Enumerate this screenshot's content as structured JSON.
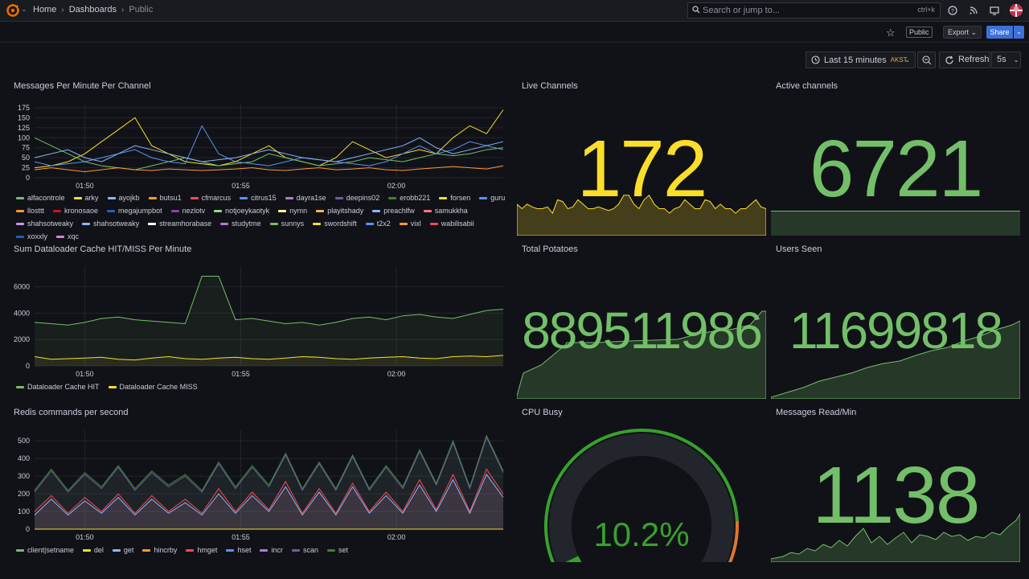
{
  "nav": {
    "breadcrumbs": [
      "Home",
      "Dashboards",
      "Public"
    ],
    "search_placeholder": "Search or jump to...",
    "search_shortcut": "ctrl+k"
  },
  "toolbar": {
    "public_tag": "Public",
    "export_label": "Export",
    "share_label": "Share",
    "time_range": "Last 15 minutes",
    "timezone": "AKST",
    "refresh_label": "Refresh",
    "refresh_interval": "5s"
  },
  "colors": {
    "green": "#73bf69",
    "yellow": "#fade2a",
    "red": "#f2495c",
    "orange": "#ff9830",
    "blue": "#5794f2",
    "purple": "#b877d9"
  },
  "panels": {
    "messages_per_minute": {
      "title": "Messages Per Minute Per Channel",
      "legend": [
        {
          "name": "alfacontrole",
          "color": "#73bf69"
        },
        {
          "name": "arky",
          "color": "#fade2a"
        },
        {
          "name": "ayojkb",
          "color": "#8ab8ff"
        },
        {
          "name": "butsu1",
          "color": "#ff9830"
        },
        {
          "name": "cfmarcus",
          "color": "#f2495c"
        },
        {
          "name": "citrus15",
          "color": "#5794f2"
        },
        {
          "name": "dayra1se",
          "color": "#b877d9"
        },
        {
          "name": "deepins02",
          "color": "#705da0"
        },
        {
          "name": "erobb221",
          "color": "#37872d"
        },
        {
          "name": "forsen",
          "color": "#fade2a"
        },
        {
          "name": "guru",
          "color": "#5794f2"
        },
        {
          "name": "llosttt",
          "color": "#ff9830"
        },
        {
          "name": "kronosaoe",
          "color": "#c4162a"
        },
        {
          "name": "megajumpbot",
          "color": "#1f60c4"
        },
        {
          "name": "nezlotv",
          "color": "#8f3bb8"
        },
        {
          "name": "notjoeykaotyk",
          "color": "#96d98d"
        },
        {
          "name": "nymn",
          "color": "#fff899"
        },
        {
          "name": "playitshady",
          "color": "#ffb357"
        },
        {
          "name": "preachlfw",
          "color": "#8ab8ff"
        },
        {
          "name": "samukkha",
          "color": "#ff7383"
        },
        {
          "name": "shahsotweaky",
          "color": "#ca95e5"
        },
        {
          "name": "shahsotweaky",
          "color": "#8ab8ff"
        },
        {
          "name": "streamhorabase",
          "color": "#ffffff"
        },
        {
          "name": "studytme",
          "color": "#b877d9"
        },
        {
          "name": "sunnys",
          "color": "#73bf69"
        },
        {
          "name": "swordshift",
          "color": "#fade2a"
        },
        {
          "name": "t2x2",
          "color": "#5794f2"
        },
        {
          "name": "vixl",
          "color": "#ff9830"
        },
        {
          "name": "wabilisabii",
          "color": "#f2495c"
        },
        {
          "name": "xoxxly",
          "color": "#1f60c4"
        },
        {
          "name": "xqc",
          "color": "#d683ce"
        }
      ]
    },
    "live_channels": {
      "title": "Live Channels",
      "value": "172",
      "color": "#fade2a",
      "spark": [
        0.35,
        0.3,
        0.35,
        0.32,
        0.3,
        0.3,
        0.32,
        0.25,
        0.4,
        0.38,
        0.3,
        0.32,
        0.4,
        0.35,
        0.3,
        0.3,
        0.32,
        0.3,
        0.28,
        0.3,
        0.35,
        0.45,
        0.45,
        0.35,
        0.3,
        0.4,
        0.45,
        0.35,
        0.3,
        0.3,
        0.25,
        0.3,
        0.32,
        0.4,
        0.35,
        0.3,
        0.3,
        0.4,
        0.38,
        0.3,
        0.35,
        0.3,
        0.3,
        0.25,
        0.3,
        0.3,
        0.35,
        0.4,
        0.32,
        0.3
      ]
    },
    "active_channels": {
      "title": "Active channels",
      "value": "6721",
      "color": "#73bf69"
    },
    "total_potatoes": {
      "title": "Total Potatoes",
      "value": "889511986",
      "color": "#73bf69"
    },
    "users_seen": {
      "title": "Users Seen",
      "value": "11699818",
      "color": "#73bf69"
    },
    "cpu_busy": {
      "title": "CPU Busy",
      "value": "10.2%",
      "percent": 10.2,
      "color": "#37a22c"
    },
    "messages_read": {
      "title": "Messages Read/Min",
      "value": "1138",
      "color": "#73bf69"
    },
    "dataloader": {
      "title": "Sum Dataloader Cache HIT/MISS Per Minute",
      "legend": [
        {
          "name": "Dataloader Cache HIT",
          "color": "#73bf69"
        },
        {
          "name": "Dataloader Cache MISS",
          "color": "#fade2a"
        }
      ]
    },
    "redis": {
      "title": "Redis commands per second",
      "legend": [
        {
          "name": "client|setname",
          "color": "#73bf69"
        },
        {
          "name": "del",
          "color": "#fade2a"
        },
        {
          "name": "get",
          "color": "#8ab8ff"
        },
        {
          "name": "hincrby",
          "color": "#ff9830"
        },
        {
          "name": "hmget",
          "color": "#f2495c"
        },
        {
          "name": "hset",
          "color": "#5794f2"
        },
        {
          "name": "incr",
          "color": "#b877d9"
        },
        {
          "name": "scan",
          "color": "#705da0"
        },
        {
          "name": "set",
          "color": "#37872d"
        }
      ]
    }
  },
  "chart_data": [
    {
      "type": "line",
      "title": "Messages Per Minute Per Channel",
      "x_ticks": [
        "01:50",
        "01:55",
        "02:00"
      ],
      "y_ticks": [
        0,
        25,
        50,
        75,
        100,
        125,
        150,
        175
      ],
      "ylim": [
        0,
        185
      ],
      "series": [
        {
          "name": "forsen",
          "values": [
            25,
            30,
            40,
            60,
            90,
            120,
            150,
            80,
            60,
            40,
            35,
            30,
            40,
            60,
            80,
            50,
            40,
            30,
            50,
            90,
            70,
            50,
            60,
            70,
            60,
            100,
            130,
            110,
            170
          ]
        },
        {
          "name": "alfacontrole",
          "values": [
            100,
            80,
            60,
            40,
            30,
            25,
            20,
            30,
            40,
            50,
            40,
            30,
            35,
            40,
            60,
            50,
            40,
            30,
            35,
            40,
            50,
            45,
            40,
            50,
            60,
            55,
            60,
            70,
            75
          ]
        },
        {
          "name": "citrus15",
          "values": [
            40,
            30,
            35,
            40,
            50,
            60,
            70,
            50,
            40,
            35,
            130,
            60,
            40,
            35,
            30,
            40,
            50,
            45,
            40,
            35,
            30,
            40,
            60,
            80,
            60,
            70,
            90,
            80,
            70
          ]
        },
        {
          "name": "ayojkb",
          "values": [
            50,
            60,
            70,
            50,
            40,
            60,
            80,
            70,
            60,
            50,
            40,
            45,
            50,
            60,
            70,
            60,
            50,
            45,
            40,
            50,
            60,
            70,
            80,
            100,
            75,
            60,
            70,
            80,
            90
          ]
        },
        {
          "name": "butsu1",
          "values": [
            20,
            25,
            20,
            15,
            20,
            25,
            20,
            18,
            22,
            20,
            18,
            20,
            22,
            25,
            20,
            18,
            22,
            25,
            20,
            22,
            25,
            20,
            18,
            22,
            25,
            28,
            25,
            22,
            30
          ]
        }
      ]
    },
    {
      "type": "area",
      "title": "Sum Dataloader Cache HIT/MISS Per Minute",
      "x_ticks": [
        "01:50",
        "01:55",
        "02:00"
      ],
      "y_ticks": [
        0,
        2000,
        4000,
        6000
      ],
      "ylim": [
        0,
        7500
      ],
      "series": [
        {
          "name": "Dataloader Cache HIT",
          "values": [
            3300,
            3200,
            3100,
            3300,
            3600,
            3700,
            3500,
            3400,
            3300,
            3200,
            6800,
            6800,
            3500,
            3600,
            3400,
            3200,
            3300,
            3100,
            3300,
            3600,
            3700,
            3500,
            3800,
            3900,
            3700,
            3600,
            3900,
            4200,
            4300
          ]
        },
        {
          "name": "Dataloader Cache MISS",
          "values": [
            700,
            500,
            550,
            600,
            650,
            500,
            450,
            600,
            700,
            550,
            500,
            600,
            650,
            550,
            500,
            600,
            700,
            650,
            550,
            500,
            600,
            650,
            700,
            600,
            550,
            700,
            750,
            700,
            800
          ]
        }
      ]
    },
    {
      "type": "area",
      "title": "Redis commands per second",
      "x_ticks": [
        "01:50",
        "01:55",
        "02:00"
      ],
      "y_ticks": [
        0,
        100,
        200,
        300,
        400,
        500
      ],
      "ylim": [
        0,
        560
      ],
      "series": [
        {
          "name": "set",
          "values": [
            220,
            340,
            220,
            320,
            240,
            360,
            230,
            330,
            250,
            310,
            220,
            380,
            240,
            360,
            250,
            430,
            230,
            380,
            230,
            420,
            230,
            360,
            240,
            450,
            260,
            500,
            240,
            530,
            330
          ]
        },
        {
          "name": "scan",
          "values": [
            210,
            330,
            210,
            310,
            230,
            350,
            220,
            320,
            240,
            300,
            210,
            370,
            230,
            350,
            240,
            420,
            220,
            370,
            220,
            410,
            220,
            350,
            230,
            440,
            250,
            490,
            230,
            520,
            320
          ]
        },
        {
          "name": "hmget",
          "values": [
            100,
            190,
            90,
            180,
            100,
            200,
            90,
            190,
            100,
            170,
            90,
            230,
            100,
            210,
            110,
            270,
            90,
            230,
            90,
            260,
            100,
            210,
            100,
            280,
            110,
            310,
            100,
            340,
            200
          ]
        },
        {
          "name": "get",
          "values": [
            80,
            170,
            80,
            160,
            90,
            180,
            80,
            170,
            90,
            150,
            80,
            200,
            90,
            190,
            100,
            240,
            80,
            210,
            80,
            240,
            90,
            190,
            90,
            250,
            100,
            280,
            90,
            310,
            180
          ]
        },
        {
          "name": "del",
          "values": [
            0,
            0,
            0,
            0,
            0,
            0,
            0,
            0,
            0,
            0,
            0,
            0,
            0,
            0,
            0,
            0,
            0,
            0,
            0,
            0,
            0,
            0,
            0,
            0,
            0,
            0,
            0,
            0,
            0
          ]
        }
      ]
    }
  ]
}
